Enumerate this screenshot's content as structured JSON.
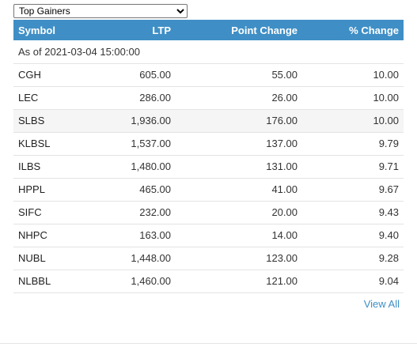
{
  "filter": {
    "selected": "Top Gainers"
  },
  "table": {
    "headers": {
      "symbol": "Symbol",
      "ltp": "LTP",
      "point_change": "Point Change",
      "pct_change": "% Change"
    },
    "as_of": "As of 2021-03-04 15:00:00",
    "rows": [
      {
        "symbol": "CGH",
        "ltp": "605.00",
        "point_change": "55.00",
        "pct_change": "10.00"
      },
      {
        "symbol": "LEC",
        "ltp": "286.00",
        "point_change": "26.00",
        "pct_change": "10.00"
      },
      {
        "symbol": "SLBS",
        "ltp": "1,936.00",
        "point_change": "176.00",
        "pct_change": "10.00"
      },
      {
        "symbol": "KLBSL",
        "ltp": "1,537.00",
        "point_change": "137.00",
        "pct_change": "9.79"
      },
      {
        "symbol": "ILBS",
        "ltp": "1,480.00",
        "point_change": "131.00",
        "pct_change": "9.71"
      },
      {
        "symbol": "HPPL",
        "ltp": "465.00",
        "point_change": "41.00",
        "pct_change": "9.67"
      },
      {
        "symbol": "SIFC",
        "ltp": "232.00",
        "point_change": "20.00",
        "pct_change": "9.43"
      },
      {
        "symbol": "NHPC",
        "ltp": "163.00",
        "point_change": "14.00",
        "pct_change": "9.40"
      },
      {
        "symbol": "NUBL",
        "ltp": "1,448.00",
        "point_change": "123.00",
        "pct_change": "9.28"
      },
      {
        "symbol": "NLBBL",
        "ltp": "1,460.00",
        "point_change": "121.00",
        "pct_change": "9.04"
      }
    ]
  },
  "footer": {
    "view_all_label": "View All"
  },
  "colors": {
    "header_bg": "#3f8fc6",
    "link": "#3f8fc6",
    "row_highlight": "#f5f5f5"
  }
}
